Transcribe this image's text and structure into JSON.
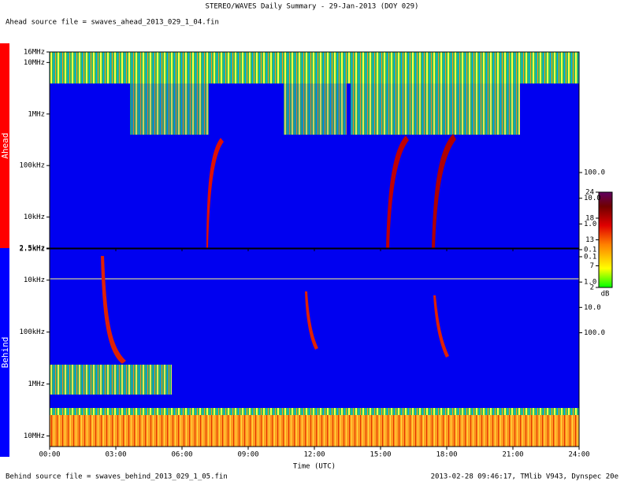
{
  "chart_data": {
    "type": "spectrogram",
    "title": "STEREO/WAVES Daily Summary - 29-Jan-2013 (DOY 029)",
    "ahead_file": "Ahead source file = swaves_ahead_2013_029_1_04.fin",
    "behind_file": "Behind source file = swaves_behind_2013_029_1_05.fin",
    "footer": "2013-02-28 09:46:17, TMlib V943, Dynspec 20e",
    "xlabel": "Time (UTC)",
    "xlim": [
      0,
      24
    ],
    "xticks": [
      {
        "value": 0,
        "label": "00:00"
      },
      {
        "value": 3,
        "label": "03:00"
      },
      {
        "value": 6,
        "label": "06:00"
      },
      {
        "value": 9,
        "label": "09:00"
      },
      {
        "value": 12,
        "label": "12:00"
      },
      {
        "value": 15,
        "label": "15:00"
      },
      {
        "value": 18,
        "label": "18:00"
      },
      {
        "value": 21,
        "label": "21:00"
      },
      {
        "value": 24,
        "label": "24:00"
      }
    ],
    "log_scale": true,
    "panels": [
      {
        "name": "Ahead",
        "color": "#ff0000",
        "ylim": [
          2500,
          16000000
        ],
        "yticks": [
          {
            "value": 2500,
            "label": "2.5kHz"
          },
          {
            "value": 10000,
            "label": "10kHz"
          },
          {
            "value": 100000,
            "label": "100kHz"
          },
          {
            "value": 1000000,
            "label": "1MHz"
          },
          {
            "value": 10000000,
            "label": "10MHz"
          },
          {
            "value": 16000000,
            "label": "16MHz"
          }
        ],
        "y2lim": [
          0.115,
          4900000
        ],
        "y2ticks": [
          {
            "value": 0.1,
            "label": "0.1"
          },
          {
            "value": 1,
            "label": "1.0"
          },
          {
            "value": 10,
            "label": "10.0"
          },
          {
            "value": 100,
            "label": "100.0"
          }
        ]
      },
      {
        "name": "Behind",
        "color": "#0000ff",
        "ylim": [
          16000000,
          2500
        ],
        "yticks": [
          {
            "value": 10000000,
            "label": "10MHz"
          },
          {
            "value": 1000000,
            "label": "1MHz"
          },
          {
            "value": 100000,
            "label": "100kHz"
          },
          {
            "value": 10000,
            "label": "10kHz"
          },
          {
            "value": 2500,
            "label": "2.5kHz"
          }
        ],
        "y2lim": [
          3100000,
          0.049
        ],
        "y2ticks": [
          {
            "value": 100,
            "label": "100.0"
          },
          {
            "value": 10,
            "label": "10.0"
          },
          {
            "value": 1,
            "label": "1.0"
          },
          {
            "value": 0.1,
            "label": "0.1"
          }
        ]
      }
    ],
    "colorbar": {
      "label": "dB",
      "lim": [
        2,
        24
      ],
      "ticks": [
        2,
        7,
        13,
        18,
        24
      ]
    }
  }
}
